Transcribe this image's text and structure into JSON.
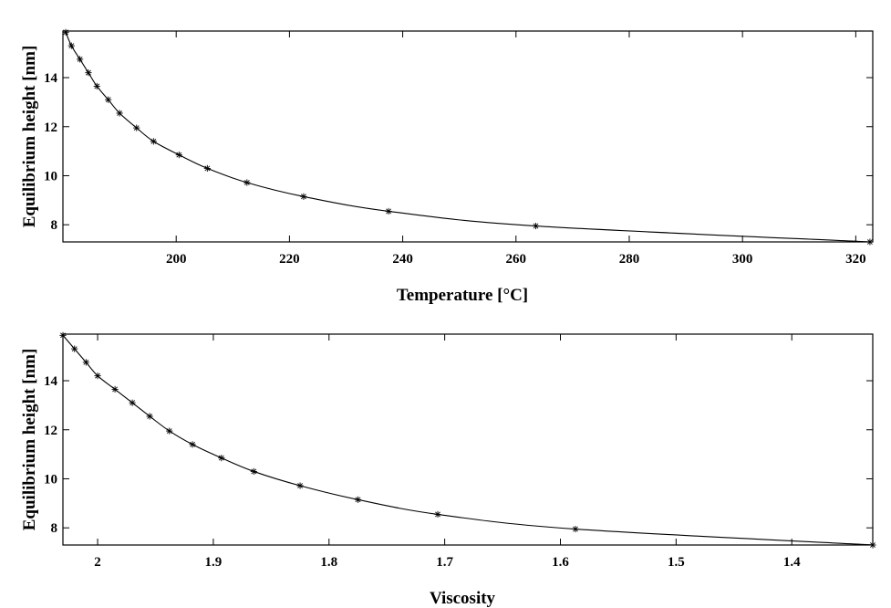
{
  "chart_data": [
    {
      "type": "line",
      "xlabel": "Temperature [°C]",
      "ylabel": "Equilibrium height [nm]",
      "xlim": [
        180,
        323
      ],
      "ylim": [
        7.3,
        15.9
      ],
      "xticks": [
        200,
        220,
        240,
        260,
        280,
        300,
        320
      ],
      "yticks": [
        8,
        10,
        12,
        14
      ],
      "marker": "asterisk",
      "grid": false,
      "series": [
        {
          "points": [
            [
              180.5,
              15.85
            ],
            [
              181.5,
              15.3
            ],
            [
              183.0,
              14.75
            ],
            [
              184.5,
              14.2
            ],
            [
              186.0,
              13.65
            ],
            [
              188.0,
              13.1
            ],
            [
              190.0,
              12.55
            ],
            [
              193.0,
              11.95
            ],
            [
              196.0,
              11.4
            ],
            [
              200.5,
              10.85
            ],
            [
              205.5,
              10.3
            ],
            [
              212.5,
              9.72
            ],
            [
              222.5,
              9.15
            ],
            [
              237.5,
              8.55
            ],
            [
              263.5,
              7.95
            ],
            [
              322.5,
              7.3
            ]
          ]
        }
      ]
    },
    {
      "type": "line",
      "xlabel": "Viscosity",
      "ylabel": "Equilibrium height [nm]",
      "xlim": [
        2.03,
        1.33
      ],
      "ylim": [
        7.3,
        15.9
      ],
      "xticks": [
        2,
        1.9,
        1.8,
        1.7,
        1.6,
        1.5,
        1.4
      ],
      "yticks": [
        8,
        10,
        12,
        14
      ],
      "marker": "asterisk",
      "grid": false,
      "series": [
        {
          "points": [
            [
              2.03,
              15.85
            ],
            [
              2.02,
              15.3
            ],
            [
              2.01,
              14.75
            ],
            [
              2.0,
              14.2
            ],
            [
              1.985,
              13.65
            ],
            [
              1.97,
              13.1
            ],
            [
              1.955,
              12.55
            ],
            [
              1.938,
              11.95
            ],
            [
              1.918,
              11.4
            ],
            [
              1.893,
              10.85
            ],
            [
              1.865,
              10.3
            ],
            [
              1.825,
              9.72
            ],
            [
              1.775,
              9.15
            ],
            [
              1.706,
              8.55
            ],
            [
              1.587,
              7.95
            ],
            [
              1.33,
              7.3
            ]
          ]
        }
      ]
    }
  ]
}
